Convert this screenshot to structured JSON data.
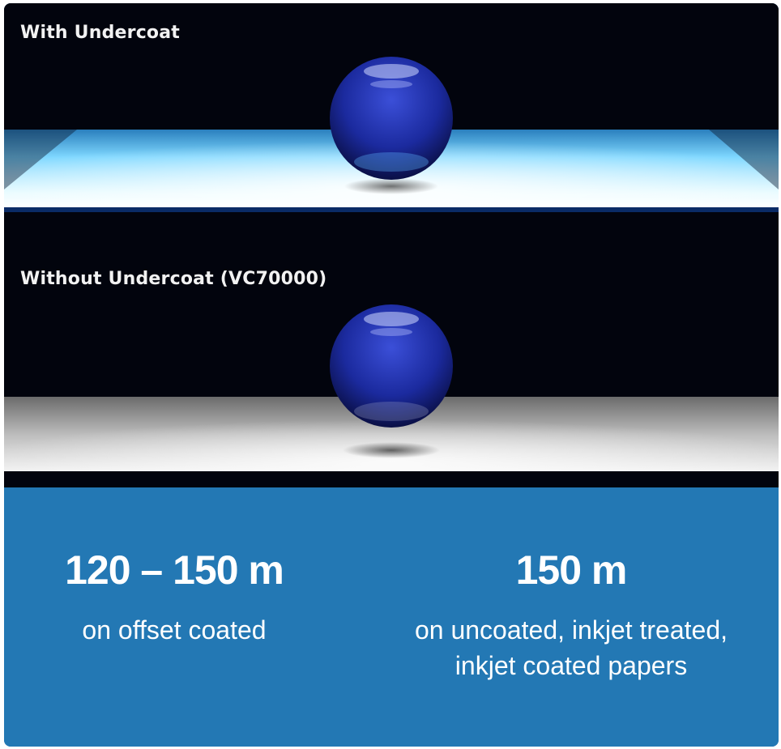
{
  "scenes": {
    "with_undercoat": {
      "label": "With Undercoat",
      "surface_color": "#8fe3ff"
    },
    "without_undercoat": {
      "label": "Without Undercoat (VC70000)",
      "surface_color": "#e6e6e6"
    },
    "sphere_color": "#1c2a9c"
  },
  "stats": [
    {
      "value": "120 – 150 m",
      "description_lines": [
        "on offset coated"
      ]
    },
    {
      "value": "150 m",
      "description_lines": [
        "on uncoated, inkjet treated,",
        "inkjet coated papers"
      ]
    }
  ],
  "colors": {
    "panel_background": "#2378b4",
    "scene_background": "#02040d"
  }
}
